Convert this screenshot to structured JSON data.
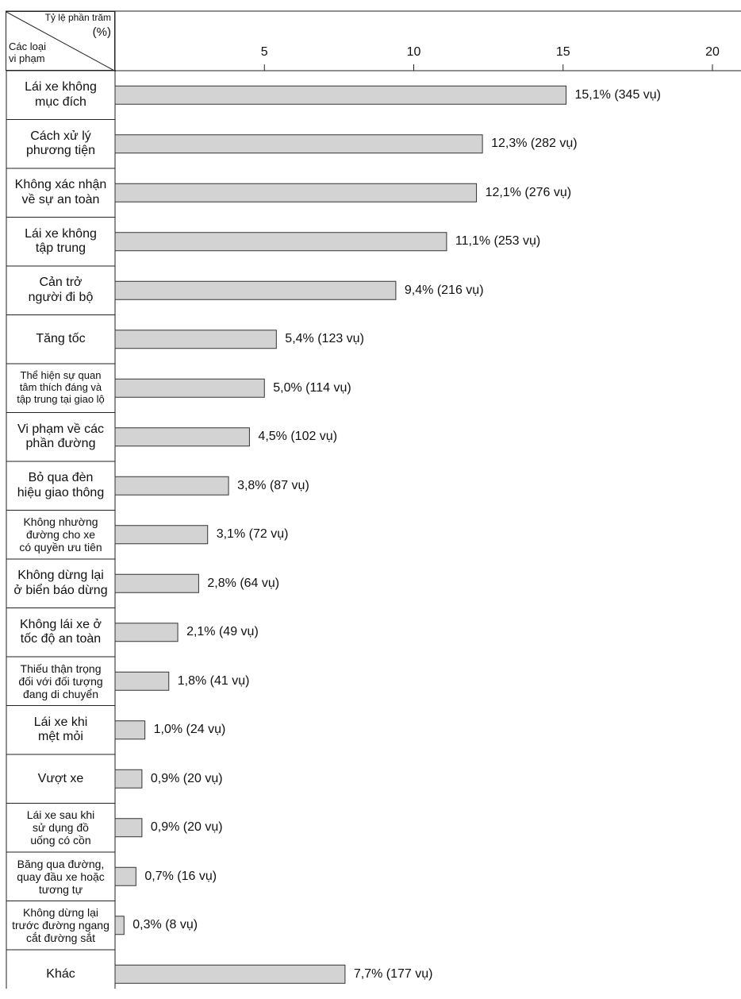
{
  "chart_data": {
    "type": "bar",
    "orientation": "horizontal",
    "header": {
      "top_label": "Tỷ lệ phần trăm",
      "unit_label": "(%)",
      "category_axis_label": "Các loại\nvi phạm"
    },
    "xlim": [
      0,
      20
    ],
    "xticks": [
      5,
      10,
      15,
      20
    ],
    "categories": [
      "Lái xe không\nmục đích",
      "Cách xử lý\nphương tiện",
      "Không xác nhận\nvề sự an toàn",
      "Lái xe không\ntập trung",
      "Cản trở\nngười đi bộ",
      "Tăng tốc",
      "Thể hiện sự quan\ntâm thích đáng và\ntập trung tại giao lộ",
      "Vi phạm về các\nphần đường",
      "Bỏ qua đèn\nhiệu giao thông",
      "Không nhường\nđường cho xe\ncó quyền ưu tiên",
      "Không dừng lại\nở biển báo dừng",
      "Không lái xe ở\ntốc độ an toàn",
      "Thiếu thận trọng\nđối với đối tượng\nđang di chuyển",
      "Lái xe khi\nmệt mỏi",
      "Vượt xe",
      "Lái xe sau khi\nsử dụng đồ\nuống có cồn",
      "Băng qua đường,\nquay đầu xe hoặc\ntương tự",
      "Không dừng lại\ntrước đường ngang\ncắt đường sắt",
      "Khác"
    ],
    "values": [
      15.1,
      12.3,
      12.1,
      11.1,
      9.4,
      5.4,
      5.0,
      4.5,
      3.8,
      3.1,
      2.8,
      2.1,
      1.8,
      1.0,
      0.9,
      0.9,
      0.7,
      0.3,
      7.7
    ],
    "value_labels": [
      "15,1% (345 vụ)",
      "12,3% (282 vụ)",
      "12,1% (276 vụ)",
      "11,1% (253 vụ)",
      "9,4% (216 vụ)",
      "5,4% (123 vụ)",
      "5,0% (114 vụ)",
      "4,5% (102 vụ)",
      "3,8% (87 vụ)",
      "3,1% (72 vụ)",
      "2,8% (64 vụ)",
      "2,1% (49 vụ)",
      "1,8% (41 vụ)",
      "1,0% (24 vụ)",
      "0,9% (20 vụ)",
      "0,9% (20 vụ)",
      "0,7% (16 vụ)",
      "0,3% (8 vụ)",
      "7,7% (177 vụ)"
    ],
    "colors": {
      "bar_fill": "#d3d3d3",
      "bar_stroke": "#333333",
      "axis": "#222222"
    }
  }
}
